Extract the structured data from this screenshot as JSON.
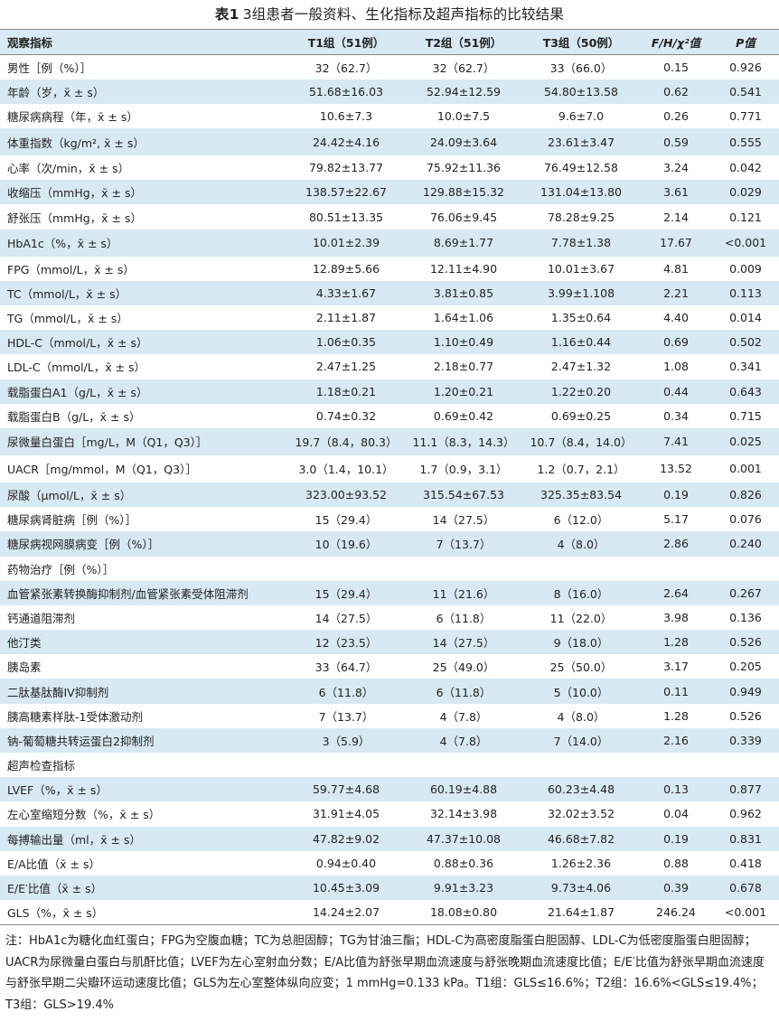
{
  "title": {
    "label": "表1",
    "text": "3组患者一般资料、生化指标及超声指标的比较结果"
  },
  "headers": [
    "观察指标",
    "T1组（51例）",
    "T2组（51例）",
    "T3组（50例）",
    "F/H/χ²值",
    "P值"
  ],
  "rows": [
    [
      "男性［例（%）］",
      "32（62.7）",
      "32（62.7）",
      "33（66.0）",
      "0.15",
      "0.926"
    ],
    [
      "年龄（岁，x̄ ± s）",
      "51.68±16.03",
      "52.94±12.59",
      "54.80±13.58",
      "0.62",
      "0.541"
    ],
    [
      "糖尿病病程（年，x̄ ± s）",
      "10.6±7.3",
      "10.0±7.5",
      "9.6±7.0",
      "0.26",
      "0.771"
    ],
    [
      "体重指数（kg/m², x̄ ± s）",
      "24.42±4.16",
      "24.09±3.64",
      "23.61±3.47",
      "0.59",
      "0.555"
    ],
    [
      "心率（次/min，x̄ ± s）",
      "79.82±13.77",
      "75.92±11.36",
      "76.49±12.58",
      "3.24",
      "0.042"
    ],
    [
      "收缩压（mmHg，x̄ ± s）",
      "138.57±22.67",
      "129.88±15.32",
      "131.04±13.80",
      "3.61",
      "0.029"
    ],
    [
      "舒张压（mmHg，x̄ ± s）",
      "80.51±13.35",
      "76.06±9.45",
      "78.28±9.25",
      "2.14",
      "0.121"
    ],
    [
      "HbA1c（%，x̄ ± s）",
      "10.01±2.39",
      "8.69±1.77",
      "7.78±1.38",
      "17.67",
      "<0.001"
    ],
    [
      "FPG（mmol/L，x̄ ± s）",
      "12.89±5.66",
      "12.11±4.90",
      "10.01±3.67",
      "4.81",
      "0.009"
    ],
    [
      "TC（mmol/L，x̄ ± s）",
      "4.33±1.67",
      "3.81±0.85",
      "3.99±1.108",
      "2.21",
      "0.113"
    ],
    [
      "TG（mmol/L，x̄ ± s）",
      "2.11±1.87",
      "1.64±1.06",
      "1.35±0.64",
      "4.40",
      "0.014"
    ],
    [
      "HDL-C（mmol/L，x̄ ± s）",
      "1.06±0.35",
      "1.10±0.49",
      "1.16±0.44",
      "0.69",
      "0.502"
    ],
    [
      "LDL-C（mmol/L，x̄ ± s）",
      "2.47±1.25",
      "2.18±0.77",
      "2.47±1.32",
      "1.08",
      "0.341"
    ],
    [
      "载脂蛋白A1（g/L，x̄ ± s）",
      "1.18±0.21",
      "1.20±0.21",
      "1.22±0.20",
      "0.44",
      "0.643"
    ],
    [
      "载脂蛋白B（g/L，x̄ ± s）",
      "0.74±0.32",
      "0.69±0.42",
      "0.69±0.25",
      "0.34",
      "0.715"
    ],
    [
      "尿微量白蛋白［mg/L，M（Q1，Q3）］",
      "19.7（8.4，80.3）",
      "11.1（8.3，14.3）",
      "10.7（8.4，14.0）",
      "7.41",
      "0.025"
    ],
    [
      "UACR［mg/mmol，M（Q1，Q3）］",
      "3.0（1.4，10.1）",
      "1.7（0.9，3.1）",
      "1.2（0.7，2.1）",
      "13.52",
      "0.001"
    ],
    [
      "尿酸（μmol/L，x̄ ± s）",
      "323.00±93.52",
      "315.54±67.53",
      "325.35±83.54",
      "0.19",
      "0.826"
    ],
    [
      "糖尿病肾脏病［例（%）］",
      "15（29.4）",
      "14（27.5）",
      "6（12.0）",
      "5.17",
      "0.076"
    ],
    [
      "糖尿病视网膜病变［例（%）］",
      "10（19.6）",
      "7（13.7）",
      "4（8.0）",
      "2.86",
      "0.240"
    ],
    [
      "药物治疗［例（%）］",
      "",
      "",
      "",
      "",
      ""
    ],
    [
      "血管紧张素转换酶抑制剂/血管紧张素受体阻滞剂",
      "15（29.4）",
      "11（21.6）",
      "8（16.0）",
      "2.64",
      "0.267"
    ],
    [
      "钙通道阻滞剂",
      "14（27.5）",
      "6（11.8）",
      "11（22.0）",
      "3.98",
      "0.136"
    ],
    [
      "他汀类",
      "12（23.5）",
      "14（27.5）",
      "9（18.0）",
      "1.28",
      "0.526"
    ],
    [
      "胰岛素",
      "33（64.7）",
      "25（49.0）",
      "25（50.0）",
      "3.17",
      "0.205"
    ],
    [
      "二肽基肽酶IV抑制剂",
      "6（11.8）",
      "6（11.8）",
      "5（10.0）",
      "0.11",
      "0.949"
    ],
    [
      "胰高糖素样肽-1受体激动剂",
      "7（13.7）",
      "4（7.8）",
      "4（8.0）",
      "1.28",
      "0.526"
    ],
    [
      "钠-葡萄糖共转运蛋白2抑制剂",
      "3（5.9）",
      "4（7.8）",
      "7（14.0）",
      "2.16",
      "0.339"
    ],
    [
      "超声检查指标",
      "",
      "",
      "",
      "",
      ""
    ],
    [
      "LVEF（%，x̄ ± s）",
      "59.77±4.68",
      "60.19±4.88",
      "60.23±4.48",
      "0.13",
      "0.877"
    ],
    [
      "左心室缩短分数（%，x̄ ± s）",
      "31.91±4.05",
      "32.14±3.98",
      "32.02±3.52",
      "0.04",
      "0.962"
    ],
    [
      "每搏输出量（ml，x̄ ± s）",
      "47.82±9.02",
      "47.37±10.08",
      "46.68±7.82",
      "0.19",
      "0.831"
    ],
    [
      "E/A比值（x̄ ± s）",
      "0.94±0.40",
      "0.88±0.36",
      "1.26±2.36",
      "0.88",
      "0.418"
    ],
    [
      "E/E′比值（x̄ ± s）",
      "10.45±3.09",
      "9.91±3.23",
      "9.73±4.06",
      "0.39",
      "0.678"
    ],
    [
      "GLS（%，x̄ ± s）",
      "14.24±2.07",
      "18.08±0.80",
      "21.64±1.87",
      "246.24",
      "<0.001"
    ]
  ],
  "note": "注：HbA1c为糖化血红蛋白；FPG为空腹血糖；TC为总胆固醇；TG为甘油三酯；HDL-C为高密度脂蛋白胆固醇、LDL-C为低密度脂蛋白胆固醇；UACR为尿微量白蛋白与肌酐比值；LVEF为左心室射血分数；E/A比值为舒张早期血流速度与舒张晚期血流速度比值；E/E′比值为舒张早期血流速度与舒张早期二尖瓣环运动速度比值；GLS为左心室整体纵向应变；1 mmHg=0.133 kPa。T1组：GLS≤16.6%；T2组：16.6%<GLS≤19.4%；T3组：GLS>19.4%"
}
